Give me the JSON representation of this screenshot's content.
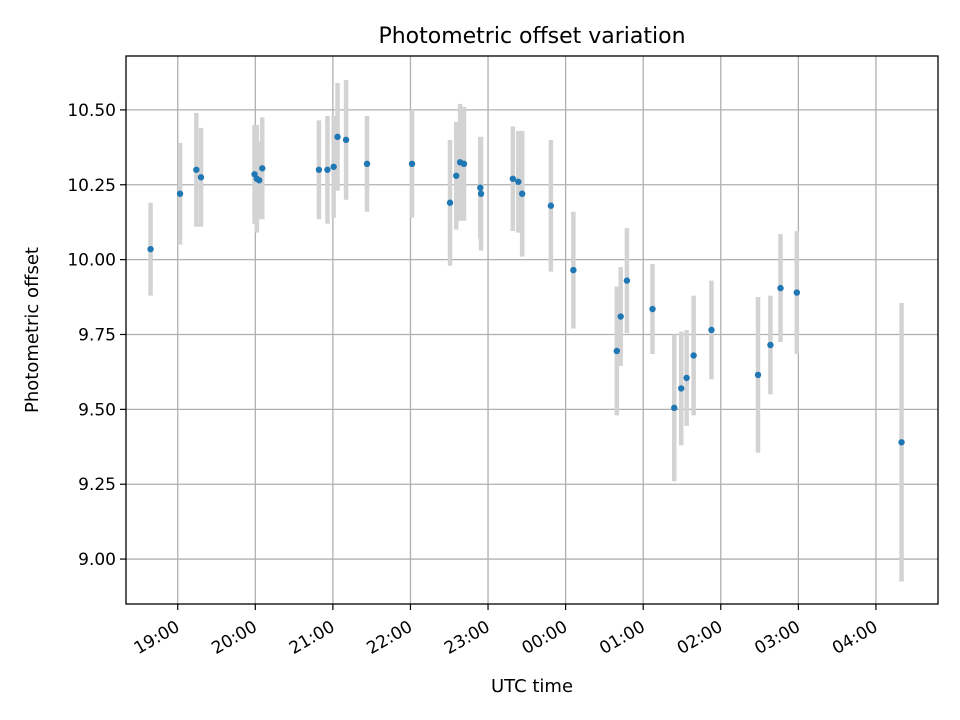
{
  "chart_data": {
    "type": "scatter",
    "title": "Photometric offset variation",
    "xlabel": "UTC time",
    "ylabel": "Photometric offset",
    "x_unit": "UTC time (hours, day 1; values above 24 = next day)",
    "xlim": [
      18.3333,
      28.8
    ],
    "ylim": [
      8.85,
      10.68
    ],
    "grid": true,
    "legend": "none",
    "x_ticks": [
      {
        "value": 19,
        "label": "19:00"
      },
      {
        "value": 20,
        "label": "20:00"
      },
      {
        "value": 21,
        "label": "21:00"
      },
      {
        "value": 22,
        "label": "22:00"
      },
      {
        "value": 23,
        "label": "23:00"
      },
      {
        "value": 24,
        "label": "00:00"
      },
      {
        "value": 25,
        "label": "01:00"
      },
      {
        "value": 26,
        "label": "02:00"
      },
      {
        "value": 27,
        "label": "03:00"
      },
      {
        "value": 28,
        "label": "04:00"
      }
    ],
    "y_ticks": [
      {
        "value": 9.0,
        "label": "9.00"
      },
      {
        "value": 9.25,
        "label": "9.25"
      },
      {
        "value": 9.5,
        "label": "9.50"
      },
      {
        "value": 9.75,
        "label": "9.75"
      },
      {
        "value": 10.0,
        "label": "10.00"
      },
      {
        "value": 10.25,
        "label": "10.25"
      },
      {
        "value": 10.5,
        "label": "10.50"
      }
    ],
    "colors": {
      "marker": "#1f77b4",
      "errorbar": "#d3d3d3",
      "grid": "#b0b0b0"
    },
    "series": [
      {
        "points": [
          {
            "x": 18.65,
            "y": 10.035,
            "err": 0.155
          },
          {
            "x": 19.03,
            "y": 10.22,
            "err": 0.17
          },
          {
            "x": 19.24,
            "y": 10.3,
            "err": 0.19
          },
          {
            "x": 19.3,
            "y": 10.275,
            "err": 0.165
          },
          {
            "x": 19.99,
            "y": 10.285,
            "err": 0.165
          },
          {
            "x": 20.02,
            "y": 10.27,
            "err": 0.18
          },
          {
            "x": 20.05,
            "y": 10.265,
            "err": 0.13
          },
          {
            "x": 20.09,
            "y": 10.305,
            "err": 0.17
          },
          {
            "x": 20.82,
            "y": 10.3,
            "err": 0.165
          },
          {
            "x": 20.93,
            "y": 10.3,
            "err": 0.18
          },
          {
            "x": 21.01,
            "y": 10.31,
            "err": 0.17
          },
          {
            "x": 21.06,
            "y": 10.41,
            "err": 0.18
          },
          {
            "x": 21.17,
            "y": 10.4,
            "err": 0.2
          },
          {
            "x": 21.44,
            "y": 10.32,
            "err": 0.16
          },
          {
            "x": 22.02,
            "y": 10.32,
            "err": 0.18
          },
          {
            "x": 22.51,
            "y": 10.19,
            "err": 0.21
          },
          {
            "x": 22.59,
            "y": 10.28,
            "err": 0.18
          },
          {
            "x": 22.64,
            "y": 10.325,
            "err": 0.195
          },
          {
            "x": 22.69,
            "y": 10.32,
            "err": 0.19
          },
          {
            "x": 22.9,
            "y": 10.24,
            "err": 0.17
          },
          {
            "x": 22.91,
            "y": 10.22,
            "err": 0.19
          },
          {
            "x": 23.32,
            "y": 10.27,
            "err": 0.175
          },
          {
            "x": 23.39,
            "y": 10.26,
            "err": 0.17
          },
          {
            "x": 23.44,
            "y": 10.22,
            "err": 0.21
          },
          {
            "x": 23.81,
            "y": 10.18,
            "err": 0.22
          },
          {
            "x": 24.1,
            "y": 9.965,
            "err": 0.195
          },
          {
            "x": 24.66,
            "y": 9.695,
            "err": 0.215
          },
          {
            "x": 24.71,
            "y": 9.81,
            "err": 0.165
          },
          {
            "x": 24.79,
            "y": 9.93,
            "err": 0.175
          },
          {
            "x": 25.12,
            "y": 9.835,
            "err": 0.15
          },
          {
            "x": 25.4,
            "y": 9.505,
            "err": 0.245
          },
          {
            "x": 25.49,
            "y": 9.57,
            "err": 0.19
          },
          {
            "x": 25.56,
            "y": 9.605,
            "err": 0.16
          },
          {
            "x": 25.65,
            "y": 9.68,
            "err": 0.2
          },
          {
            "x": 25.88,
            "y": 9.765,
            "err": 0.165
          },
          {
            "x": 26.48,
            "y": 9.615,
            "err": 0.26
          },
          {
            "x": 26.64,
            "y": 9.715,
            "err": 0.165
          },
          {
            "x": 26.77,
            "y": 9.905,
            "err": 0.18
          },
          {
            "x": 26.98,
            "y": 9.89,
            "err": 0.205
          },
          {
            "x": 28.33,
            "y": 9.39,
            "err": 0.465
          }
        ]
      }
    ]
  }
}
